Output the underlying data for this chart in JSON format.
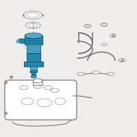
{
  "bg_color": "#f0eeec",
  "blue": "#2288aa",
  "light_blue": "#55aacc",
  "dark_blue": "#115577",
  "gray": "#999999",
  "dark_gray": "#555555",
  "line_color": "#777777",
  "white": "#ffffff"
}
